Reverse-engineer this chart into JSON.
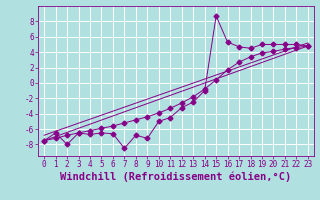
{
  "background_color": "#b0e0e0",
  "grid_color": "#ffffff",
  "line_color": "#880088",
  "xlabel": "Windchill (Refroidissement éolien,°C)",
  "xlim": [
    -0.5,
    23.5
  ],
  "ylim": [
    -9.5,
    10.0
  ],
  "yticks": [
    -8,
    -6,
    -4,
    -2,
    0,
    2,
    4,
    6,
    8
  ],
  "xticks": [
    0,
    1,
    2,
    3,
    4,
    5,
    6,
    7,
    8,
    9,
    10,
    11,
    12,
    13,
    14,
    15,
    16,
    17,
    18,
    19,
    20,
    21,
    22,
    23
  ],
  "series1_x": [
    0,
    1,
    2,
    3,
    4,
    5,
    6,
    7,
    8,
    9,
    10,
    11,
    12,
    13,
    14,
    15,
    16,
    17,
    18,
    19,
    20,
    21,
    22,
    23
  ],
  "series1_y": [
    -7.5,
    -6.5,
    -8.0,
    -6.5,
    -6.7,
    -6.5,
    -6.6,
    -8.5,
    -6.8,
    -7.2,
    -5.0,
    -4.5,
    -3.2,
    -2.5,
    -1.0,
    8.7,
    5.3,
    4.7,
    4.5,
    5.0,
    5.0,
    5.0,
    5.0,
    4.8
  ],
  "series2_x": [
    0,
    1,
    2,
    3,
    4,
    5,
    6,
    7,
    8,
    9,
    10,
    11,
    12,
    13,
    14,
    15,
    16,
    17,
    18,
    19,
    20,
    21,
    22,
    23
  ],
  "series2_y": [
    -7.5,
    -7.2,
    -6.8,
    -6.5,
    -6.2,
    -5.9,
    -5.6,
    -5.2,
    -4.8,
    -4.4,
    -3.9,
    -3.3,
    -2.6,
    -1.8,
    -0.8,
    0.4,
    1.7,
    2.7,
    3.4,
    3.9,
    4.1,
    4.4,
    4.6,
    4.8
  ],
  "series3_x": [
    0,
    23
  ],
  "series3_y": [
    -7.5,
    4.8
  ],
  "series4_x": [
    0,
    23
  ],
  "series4_y": [
    -6.8,
    5.2
  ],
  "tick_fontsize": 5.5,
  "xlabel_fontsize": 7.5
}
